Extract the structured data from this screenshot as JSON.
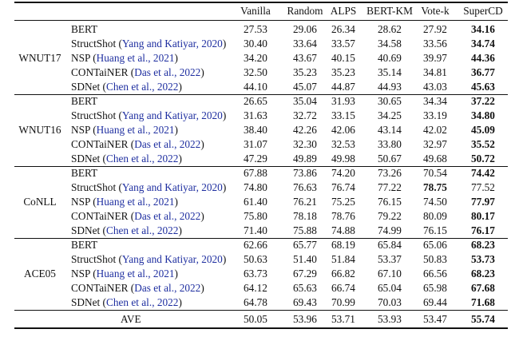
{
  "table": {
    "columns": [
      "Vanilla",
      "Random",
      "ALPS",
      "BERT-KM",
      "Vote-k",
      "SuperCD"
    ],
    "groups": [
      {
        "dataset": "WNUT17",
        "rows": [
          {
            "method": "BERT",
            "cite": "",
            "values": [
              "27.53",
              "29.06",
              "26.34",
              "28.62",
              "27.92",
              "34.16"
            ],
            "bold": [
              5
            ]
          },
          {
            "method": "StructShot",
            "cite": "Yang and Katiyar, 2020",
            "values": [
              "30.40",
              "33.64",
              "33.57",
              "34.58",
              "33.56",
              "34.74"
            ],
            "bold": [
              5
            ]
          },
          {
            "method": "NSP",
            "cite": "Huang et al., 2021",
            "values": [
              "34.20",
              "43.67",
              "40.15",
              "40.69",
              "39.97",
              "44.36"
            ],
            "bold": [
              5
            ]
          },
          {
            "method": "CONTaiNER",
            "cite": "Das et al., 2022",
            "values": [
              "32.50",
              "35.23",
              "35.23",
              "35.14",
              "34.81",
              "36.77"
            ],
            "bold": [
              5
            ]
          },
          {
            "method": "SDNet",
            "cite": "Chen et al., 2022",
            "values": [
              "44.10",
              "45.07",
              "44.87",
              "44.93",
              "43.03",
              "45.63"
            ],
            "bold": [
              5
            ]
          }
        ]
      },
      {
        "dataset": "WNUT16",
        "rows": [
          {
            "method": "BERT",
            "cite": "",
            "values": [
              "26.65",
              "35.04",
              "31.93",
              "30.65",
              "34.34",
              "37.22"
            ],
            "bold": [
              5
            ]
          },
          {
            "method": "StructShot",
            "cite": "Yang and Katiyar, 2020",
            "values": [
              "31.63",
              "32.72",
              "33.15",
              "34.25",
              "33.19",
              "34.80"
            ],
            "bold": [
              5
            ]
          },
          {
            "method": "NSP",
            "cite": "Huang et al., 2021",
            "values": [
              "38.40",
              "42.26",
              "42.06",
              "43.14",
              "42.02",
              "45.09"
            ],
            "bold": [
              5
            ]
          },
          {
            "method": "CONTaiNER",
            "cite": "Das et al., 2022",
            "values": [
              "31.07",
              "32.30",
              "32.53",
              "33.80",
              "32.97",
              "35.52"
            ],
            "bold": [
              5
            ]
          },
          {
            "method": "SDNet",
            "cite": "Chen et al., 2022",
            "values": [
              "47.29",
              "49.89",
              "49.98",
              "50.67",
              "49.68",
              "50.72"
            ],
            "bold": [
              5
            ]
          }
        ]
      },
      {
        "dataset": "CoNLL",
        "rows": [
          {
            "method": "BERT",
            "cite": "",
            "values": [
              "67.88",
              "73.86",
              "74.20",
              "73.26",
              "70.54",
              "74.42"
            ],
            "bold": [
              5
            ]
          },
          {
            "method": "StructShot",
            "cite": "Yang and Katiyar, 2020",
            "values": [
              "74.80",
              "76.63",
              "76.74",
              "77.22",
              "78.75",
              "77.52"
            ],
            "bold": [
              4
            ]
          },
          {
            "method": "NSP",
            "cite": "Huang et al., 2021",
            "values": [
              "61.40",
              "76.21",
              "75.25",
              "76.15",
              "74.50",
              "77.97"
            ],
            "bold": [
              5
            ]
          },
          {
            "method": "CONTaiNER",
            "cite": "Das et al., 2022",
            "values": [
              "75.80",
              "78.18",
              "78.76",
              "79.22",
              "80.09",
              "80.17"
            ],
            "bold": [
              5
            ]
          },
          {
            "method": "SDNet",
            "cite": "Chen et al., 2022",
            "values": [
              "71.40",
              "75.88",
              "74.88",
              "74.99",
              "76.15",
              "76.17"
            ],
            "bold": [
              5
            ]
          }
        ]
      },
      {
        "dataset": "ACE05",
        "rows": [
          {
            "method": "BERT",
            "cite": "",
            "values": [
              "62.66",
              "65.77",
              "68.19",
              "65.84",
              "65.06",
              "68.23"
            ],
            "bold": [
              5
            ]
          },
          {
            "method": "StructShot",
            "cite": "Yang and Katiyar, 2020",
            "values": [
              "50.63",
              "51.40",
              "51.84",
              "53.37",
              "50.83",
              "53.73"
            ],
            "bold": [
              5
            ]
          },
          {
            "method": "NSP",
            "cite": "Huang et al., 2021",
            "values": [
              "63.73",
              "67.29",
              "66.82",
              "67.10",
              "66.56",
              "68.23"
            ],
            "bold": [
              5
            ]
          },
          {
            "method": "CONTaiNER",
            "cite": "Das et al., 2022",
            "values": [
              "64.12",
              "65.63",
              "66.74",
              "65.04",
              "65.98",
              "67.68"
            ],
            "bold": [
              5
            ]
          },
          {
            "method": "SDNet",
            "cite": "Chen et al., 2022",
            "values": [
              "64.78",
              "69.43",
              "70.99",
              "70.03",
              "69.44",
              "71.68"
            ],
            "bold": [
              5
            ]
          }
        ]
      }
    ],
    "average": {
      "label": "AVE",
      "values": [
        "50.05",
        "53.96",
        "53.71",
        "53.93",
        "53.47",
        "55.74"
      ],
      "bold": [
        5
      ]
    }
  },
  "colors": {
    "citation": "#1f2fa0",
    "text": "#111111"
  }
}
